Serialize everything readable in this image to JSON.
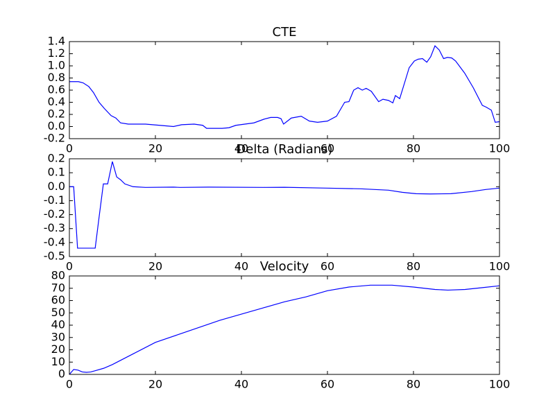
{
  "chart_data": [
    {
      "type": "line",
      "title": "CTE",
      "color": "#0000ff",
      "x": [
        0,
        2.1,
        3.2,
        4.5,
        5.6,
        6.9,
        8.1,
        9.7,
        10.8,
        11.9,
        13.7,
        17.7,
        21,
        24.2,
        26.1,
        29,
        31,
        31.9,
        35.5,
        37.1,
        38.7,
        42.9,
        45.2,
        46.8,
        48.4,
        49.2,
        49.8,
        51.6,
        53.9,
        55.8,
        57.7,
        60,
        62.1,
        64,
        65,
        66.1,
        67.1,
        68.1,
        69,
        70.2,
        71.9,
        72.9,
        74.2,
        75.2,
        75.8,
        76.8,
        78.1,
        79,
        80.2,
        81.1,
        82.1,
        83.1,
        84,
        85,
        86,
        87,
        87.9,
        88.9,
        89.8,
        91.9,
        93.9,
        96,
        96.9,
        98.1,
        99,
        100
      ],
      "values": [
        0.74,
        0.74,
        0.72,
        0.66,
        0.56,
        0.4,
        0.3,
        0.18,
        0.14,
        0.06,
        0.04,
        0.04,
        0.02,
        0,
        0.03,
        0.04,
        0.02,
        -0.03,
        -0.03,
        -0.02,
        0.02,
        0.06,
        0.12,
        0.15,
        0.15,
        0.13,
        0.04,
        0.14,
        0.17,
        0.09,
        0.07,
        0.09,
        0.17,
        0.4,
        0.41,
        0.6,
        0.64,
        0.6,
        0.63,
        0.58,
        0.41,
        0.45,
        0.43,
        0.39,
        0.51,
        0.46,
        0.76,
        0.97,
        1.08,
        1.11,
        1.12,
        1.06,
        1.15,
        1.33,
        1.26,
        1.12,
        1.14,
        1.13,
        1.08,
        0.88,
        0.64,
        0.35,
        0.32,
        0.27,
        0.07,
        0.08
      ],
      "xlim": [
        0,
        100
      ],
      "xticks": [
        0,
        20,
        40,
        60,
        80,
        100
      ],
      "ylim": [
        -0.2,
        1.4
      ],
      "yticks": [
        -0.2,
        {
          "value": 0,
          "label": "0.0"
        },
        0.2,
        0.4,
        0.6,
        0.8,
        {
          "value": 1,
          "label": "1.0"
        },
        1.2,
        1.4
      ]
    },
    {
      "type": "line",
      "title": "Delta (Radians)",
      "color": "#0000ff",
      "x": [
        0,
        1,
        1.9,
        6,
        6.9,
        7.9,
        8.9,
        10,
        11,
        11.9,
        12.9,
        14.8,
        17.7,
        24.2,
        25.8,
        32.3,
        45.2,
        50,
        59.7,
        67.7,
        74.2,
        77.4,
        80.6,
        83.9,
        88.7,
        93.5,
        96.8,
        100
      ],
      "values": [
        0,
        0,
        -0.44,
        -0.44,
        -0.22,
        0.02,
        0.02,
        0.18,
        0.07,
        0.05,
        0.02,
        0,
        -0.005,
        -0.003,
        -0.005,
        -0.003,
        -0.005,
        -0.004,
        -0.01,
        -0.015,
        -0.025,
        -0.04,
        -0.05,
        -0.052,
        -0.05,
        -0.035,
        -0.02,
        -0.01
      ],
      "xlim": [
        0,
        100
      ],
      "xticks": [
        0,
        20,
        40,
        60,
        80,
        100
      ],
      "ylim": [
        -0.5,
        0.2
      ],
      "yticks": [
        -0.5,
        -0.4,
        -0.3,
        -0.2,
        -0.1,
        {
          "value": 0,
          "label": "0.0"
        },
        0.1,
        0.2
      ]
    },
    {
      "type": "line",
      "title": "Velocity",
      "color": "#0000ff",
      "x": [
        0,
        1,
        2,
        3,
        4,
        5,
        6,
        8,
        10,
        15,
        20,
        25,
        30,
        35,
        40,
        45,
        50,
        55,
        60,
        65,
        70,
        75,
        80,
        85,
        88,
        92,
        96,
        100
      ],
      "values": [
        0,
        4,
        3.5,
        2,
        1.7,
        2,
        3,
        5,
        8,
        17,
        26,
        32,
        38,
        44,
        49,
        54,
        59,
        63,
        68,
        71,
        72.5,
        72.5,
        71,
        69,
        68.5,
        69,
        70.5,
        72
      ],
      "xlim": [
        0,
        100
      ],
      "xticks": [
        0,
        20,
        40,
        60,
        80,
        100
      ],
      "ylim": [
        0,
        80
      ],
      "yticks": [
        0,
        10,
        20,
        30,
        40,
        50,
        60,
        70,
        80
      ]
    }
  ]
}
